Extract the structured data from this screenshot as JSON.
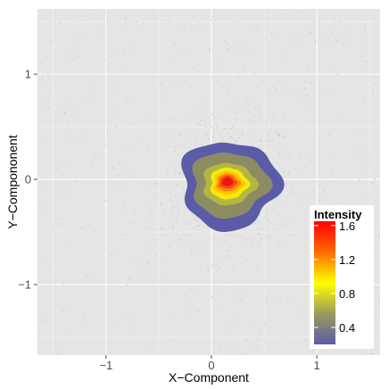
{
  "chart_data": {
    "type": "density-contour",
    "xlabel": "X−Component",
    "ylabel": "Y−Compononent",
    "xlim": [
      -1.65,
      1.6
    ],
    "ylim": [
      -1.67,
      1.62
    ],
    "x_ticks": [
      {
        "value": -1,
        "label": "−1"
      },
      {
        "value": 0,
        "label": "0"
      },
      {
        "value": 1,
        "label": "1"
      }
    ],
    "y_ticks": [
      {
        "value": -1,
        "label": "−1"
      },
      {
        "value": 0,
        "label": "0"
      },
      {
        "value": 1,
        "label": "1"
      }
    ],
    "grid": true,
    "panel_background": "#e5e5e5",
    "density_peak": {
      "x": 0.15,
      "y": -0.02,
      "value": 1.65
    },
    "contour_levels": [
      {
        "level": 0.2,
        "color": "#5b5ba8",
        "radius": [
          0.46,
          0.42
        ]
      },
      {
        "level": 0.4,
        "color": "#8c8c63",
        "radius": [
          0.36,
          0.31
        ]
      },
      {
        "level": 0.6,
        "color": "#b5b543",
        "radius": [
          0.25,
          0.2
        ]
      },
      {
        "level": 0.8,
        "color": "#f0ec08",
        "radius": [
          0.18,
          0.15
        ]
      },
      {
        "level": 1.0,
        "color": "#fcc308",
        "radius": [
          0.14,
          0.11
        ]
      },
      {
        "level": 1.2,
        "color": "#fa8a0a",
        "radius": [
          0.11,
          0.085
        ]
      },
      {
        "level": 1.4,
        "color": "#f54a10",
        "radius": [
          0.08,
          0.062
        ]
      },
      {
        "level": 1.6,
        "color": "#ea1515",
        "radius": [
          0.05,
          0.04
        ]
      }
    ],
    "scatter_color": "#c9c9c9",
    "legend": {
      "title": "Intensity",
      "position": "bottom-right",
      "range": [
        0.2,
        1.65
      ],
      "breaks": [
        {
          "value": 0.4,
          "label": "0.4"
        },
        {
          "value": 0.8,
          "label": "0.8"
        },
        {
          "value": 1.2,
          "label": "1.2"
        },
        {
          "value": 1.6,
          "label": "1.6"
        }
      ],
      "colors": [
        "#5b5ba8",
        "#9a9a5e",
        "#ffff00",
        "#ff6a00",
        "#ff0000"
      ]
    }
  }
}
